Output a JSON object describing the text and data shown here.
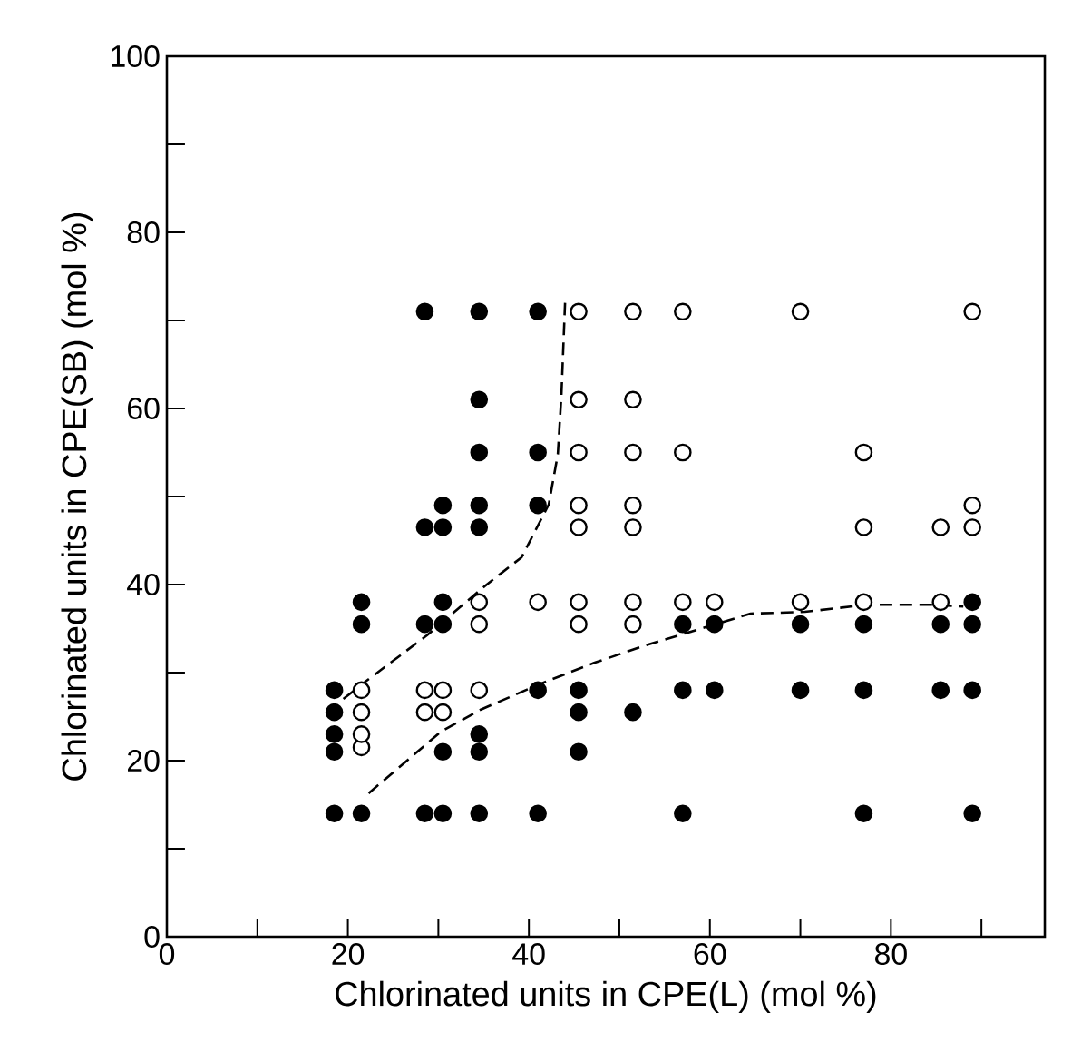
{
  "chart_data": {
    "type": "scatter",
    "xlabel": "Chlorinated units in CPE(L)  (mol %)",
    "ylabel": "Chlorinated units in CPE(SB)  (mol %)",
    "xlim": [
      0,
      97
    ],
    "ylim": [
      0,
      100
    ],
    "xticks": [
      0,
      {
        "value": 10,
        "label": null
      },
      20,
      {
        "value": 30,
        "label": null
      },
      40,
      {
        "value": 50,
        "label": null
      },
      60,
      {
        "value": 70,
        "label": null
      },
      80,
      {
        "value": 90,
        "label": null
      }
    ],
    "yticks": [
      0,
      {
        "value": 10,
        "label": null
      },
      20,
      {
        "value": 30,
        "label": null
      },
      40,
      {
        "value": 50,
        "label": null
      },
      60,
      {
        "value": 70,
        "label": null
      },
      80,
      {
        "value": 90,
        "label": null
      },
      100
    ],
    "grid": false,
    "series": [
      {
        "marker": "circle",
        "color": "#000000",
        "x": [
          18.5,
          18.5,
          18.5,
          18.5,
          18.5,
          21.5,
          21.5,
          21.5,
          28.5,
          28.5,
          28.5,
          28.5,
          30.5,
          30.5,
          30.5,
          30.5,
          30.5,
          30.5,
          34.5,
          34.5,
          34.5,
          34.5,
          34.5,
          34.5,
          34.5,
          34.5,
          41,
          41,
          41,
          41,
          41,
          45.5,
          45.5,
          45.5,
          51.5,
          57,
          57,
          57,
          60.5,
          60.5,
          70,
          70,
          77,
          77,
          77,
          85.5,
          85.5,
          89,
          89,
          89,
          89
        ],
        "values": [
          14,
          21,
          23,
          25.5,
          28,
          14,
          35.5,
          38,
          14,
          35.5,
          46.5,
          71,
          14,
          21,
          35.5,
          38,
          46.5,
          49,
          14,
          21,
          23,
          46.5,
          49,
          55,
          61,
          71,
          14,
          28,
          49,
          55,
          71,
          21,
          25.5,
          28,
          25.5,
          14,
          28,
          35.5,
          28,
          35.5,
          28,
          35.5,
          14,
          28,
          35.5,
          28,
          35.5,
          14,
          28,
          35.5,
          38
        ]
      },
      {
        "marker": "circle",
        "color": "#ffffff",
        "x": [
          21.5,
          21.5,
          21.5,
          21.5,
          28.5,
          28.5,
          30.5,
          30.5,
          34.5,
          34.5,
          34.5,
          41,
          45.5,
          45.5,
          45.5,
          45.5,
          45.5,
          45.5,
          45.5,
          51.5,
          51.5,
          51.5,
          51.5,
          51.5,
          51.5,
          51.5,
          57,
          57,
          57,
          60.5,
          70,
          70,
          77,
          77,
          77,
          85.5,
          85.5,
          89,
          89,
          89
        ],
        "values": [
          21.5,
          23,
          25.5,
          28,
          25.5,
          28,
          25.5,
          28,
          28,
          35.5,
          38,
          38,
          35.5,
          38,
          46.5,
          49,
          55,
          61,
          71,
          35.5,
          38,
          46.5,
          49,
          55,
          61,
          71,
          38,
          55,
          71,
          38,
          38,
          71,
          38,
          46.5,
          55,
          38,
          46.5,
          46.5,
          49,
          71
        ]
      },
      {
        "type": "line",
        "marker": "none",
        "line_style": "dashed",
        "color": "#000000",
        "x": [
          19.5,
          22.1,
          28.7,
          35.1,
          39.2,
          42.2,
          43.2,
          43.6,
          44
        ],
        "values": [
          27,
          29.1,
          34.2,
          39.8,
          43.1,
          49.1,
          54.8,
          61.6,
          72
        ]
      },
      {
        "type": "line",
        "marker": "none",
        "line_style": "dashed",
        "color": "#000000",
        "x": [
          22.3,
          30.3,
          34.7,
          41.2,
          47.2,
          53.2,
          58.4,
          64.5,
          70.5,
          77.3,
          84.5,
          88
        ],
        "values": [
          16.3,
          23.3,
          25.8,
          28.7,
          31.1,
          33.2,
          34.8,
          36.7,
          36.9,
          37.7,
          37.7,
          37.5
        ]
      }
    ]
  }
}
